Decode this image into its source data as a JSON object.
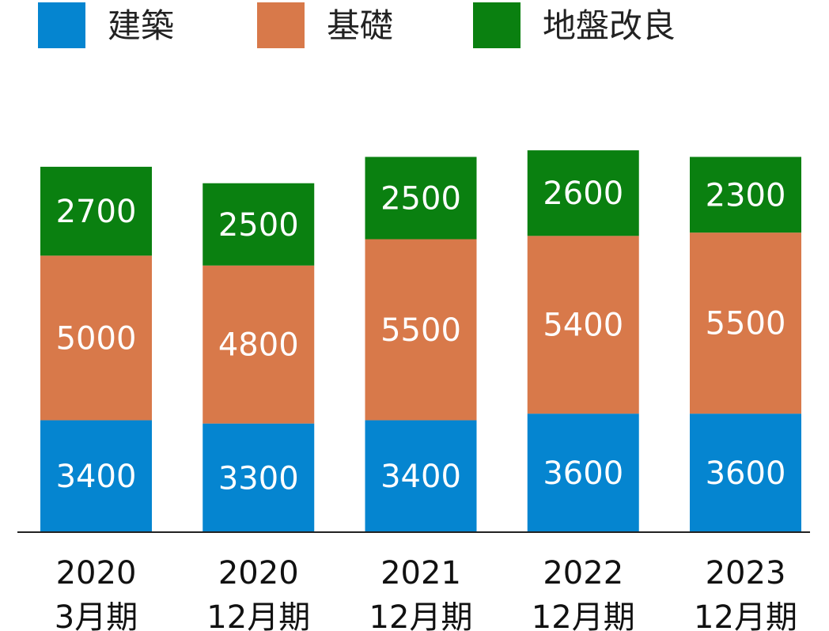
{
  "chart_data": {
    "type": "bar",
    "stacked": true,
    "categories": [
      [
        "2020",
        "3月期"
      ],
      [
        "2020",
        "12月期"
      ],
      [
        "2021",
        "12月期"
      ],
      [
        "2022",
        "12月期"
      ],
      [
        "2023",
        "12月期"
      ]
    ],
    "series": [
      {
        "name": "建築",
        "color": "#0585d0",
        "values": [
          3400,
          3300,
          3400,
          3600,
          3600
        ]
      },
      {
        "name": "基礎",
        "color": "#d8794a",
        "values": [
          5000,
          4800,
          5500,
          5400,
          5500
        ]
      },
      {
        "name": "地盤改良",
        "color": "#0a8010",
        "values": [
          2700,
          2500,
          2500,
          2600,
          2300
        ]
      }
    ],
    "show_data_labels": true,
    "legend_position": "top-left",
    "grid": false
  }
}
